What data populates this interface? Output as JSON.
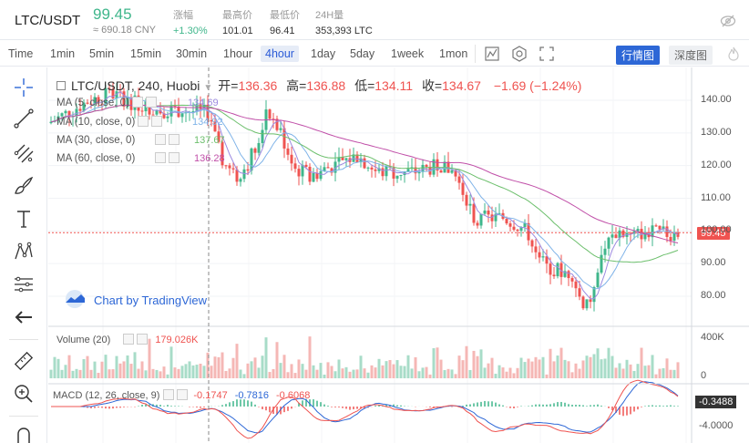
{
  "header": {
    "pair": "LTC/USDT",
    "last_price": "99.45",
    "cny_price": "≈ 690.18 CNY",
    "stats": [
      {
        "label": "涨幅",
        "value": "+1.30%",
        "up": true
      },
      {
        "label": "最高价",
        "value": "101.01",
        "up": false
      },
      {
        "label": "最低价",
        "value": "96.41",
        "up": false
      },
      {
        "label": "24H量",
        "value": "353,393 LTC",
        "up": false
      }
    ]
  },
  "toolbar": {
    "timeframes": [
      "Time",
      "1min",
      "5min",
      "15min",
      "30min",
      "1hour",
      "4hour",
      "1day",
      "5day",
      "1week",
      "1mon"
    ],
    "active_timeframe": "4hour",
    "view_buttons": [
      "行情图",
      "深度图"
    ]
  },
  "legend": {
    "symbol": "LTC/USDT, 240, Huobi",
    "open_label": "开=",
    "open": "136.36",
    "high_label": "高=",
    "high": "136.88",
    "low_label": "低=",
    "low": "134.11",
    "close_label": "收=",
    "close": "134.67",
    "change": "−1.69 (−1.24%)",
    "mas": [
      {
        "label": "MA (5, close, 0)",
        "value": "134.69",
        "color": "#9c8ae0"
      },
      {
        "label": "MA (10, close, 0)",
        "value": "134.92",
        "color": "#7fb3e8"
      },
      {
        "label": "MA (30, close, 0)",
        "value": "137.67",
        "color": "#6cbf6c"
      },
      {
        "label": "MA (60, close, 0)",
        "value": "136.28",
        "color": "#c04fa8"
      }
    ]
  },
  "watermark": "Chart by TradingView",
  "price_tag": "99.45",
  "volume": {
    "label": "Volume (20)",
    "value": "179.026K",
    "axis": [
      "400K",
      "0"
    ]
  },
  "macd": {
    "label": "MACD (12, 26, close, 9)",
    "values": [
      "-0.1747",
      "-0.7816",
      "-0.6068"
    ],
    "tag": "-0.3488",
    "axis": [
      "-4.0000"
    ]
  },
  "price_axis": [
    "140.00",
    "130.00",
    "120.00",
    "110.00",
    "100.00",
    "90.00",
    "80.00"
  ],
  "colors": {
    "up": "#3fb68b",
    "down": "#ef5350",
    "accent": "#2d67d6"
  }
}
